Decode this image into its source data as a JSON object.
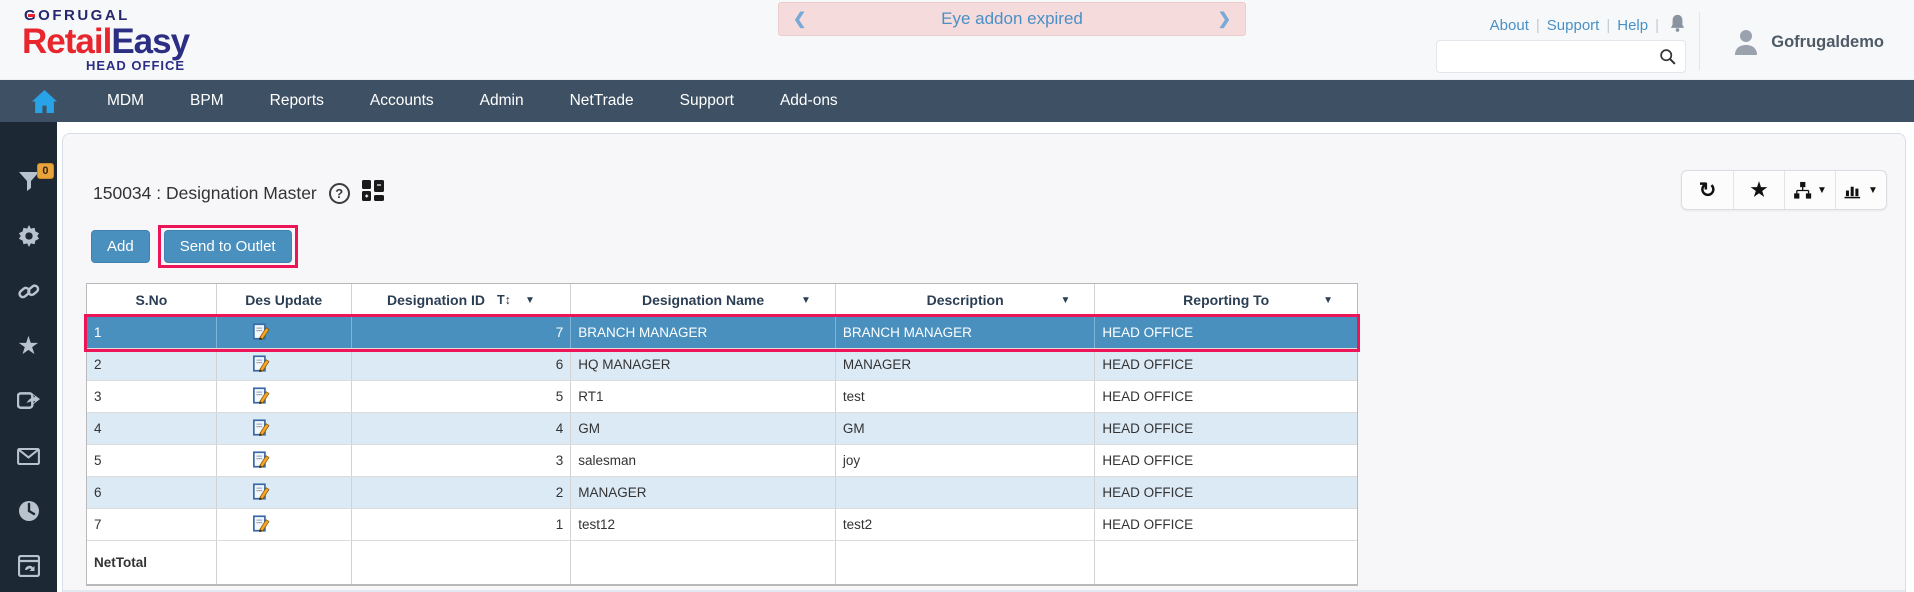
{
  "header": {
    "logo": {
      "brand": "GOFRUGAL",
      "product_red": "Retail",
      "product_navy": "Easy",
      "suffix": "HEAD OFFICE"
    },
    "banner": {
      "text": "Eye addon expired"
    },
    "links": {
      "about": "About",
      "support": "Support",
      "help": "Help"
    },
    "search": {
      "value": "",
      "placeholder": ""
    },
    "user": {
      "name": "Gofrugaldemo"
    }
  },
  "navbar": {
    "items": {
      "0": "MDM",
      "1": "BPM",
      "2": "Reports",
      "3": "Accounts",
      "4": "Admin",
      "5": "NetTrade",
      "6": "Support",
      "7": "Add-ons"
    }
  },
  "sidebar": {
    "filter_badge": "0",
    "icons": [
      "filter-icon",
      "gear-icon",
      "link-icon",
      "star-icon",
      "share-icon",
      "mail-icon",
      "clock-icon",
      "window-sync-icon"
    ]
  },
  "icons": {
    "caret_down": "▼",
    "sort_text": "T↕",
    "refresh": "↻",
    "star": "★",
    "chevron_left": "❮",
    "chevron_right": "❯",
    "help": "?"
  },
  "main": {
    "title": "150034 : Designation Master",
    "buttons": {
      "add": "Add",
      "send_to_outlet": "Send to Outlet"
    },
    "table": {
      "columns": {
        "sno": "S.No",
        "des_update": "Des Update",
        "designation_id": "Designation ID",
        "designation_name": "Designation Name",
        "description": "Description",
        "reporting_to": "Reporting To"
      },
      "rows": [
        {
          "sno": "1",
          "designation_id": "7",
          "designation_name": "BRANCH MANAGER",
          "description": "BRANCH MANAGER",
          "reporting_to": "HEAD OFFICE",
          "selected": true
        },
        {
          "sno": "2",
          "designation_id": "6",
          "designation_name": "HQ MANAGER",
          "description": "MANAGER",
          "reporting_to": "HEAD OFFICE",
          "selected": false
        },
        {
          "sno": "3",
          "designation_id": "5",
          "designation_name": "RT1",
          "description": "test",
          "reporting_to": "HEAD OFFICE",
          "selected": false
        },
        {
          "sno": "4",
          "designation_id": "4",
          "designation_name": "GM",
          "description": "GM",
          "reporting_to": "HEAD OFFICE",
          "selected": false
        },
        {
          "sno": "5",
          "designation_id": "3",
          "designation_name": "salesman",
          "description": "joy",
          "reporting_to": "HEAD OFFICE",
          "selected": false
        },
        {
          "sno": "6",
          "designation_id": "2",
          "designation_name": "MANAGER",
          "description": "",
          "reporting_to": "HEAD OFFICE",
          "selected": false
        },
        {
          "sno": "7",
          "designation_id": "1",
          "designation_name": "test12",
          "description": "test2",
          "reporting_to": "HEAD OFFICE",
          "selected": false
        }
      ],
      "footer_label": "NetTotal"
    }
  },
  "colors": {
    "navbar": "#3e5164",
    "sidebar": "#1c2834",
    "accent_blue": "#4a90bf",
    "selected_row": "#4a90bf",
    "row_alt": "#dceaf5",
    "annotation_pink": "#ed1458",
    "banner_bg": "#f5dbdb",
    "link_blue": "#4a90c4",
    "badge_orange": "#e8a33d"
  }
}
